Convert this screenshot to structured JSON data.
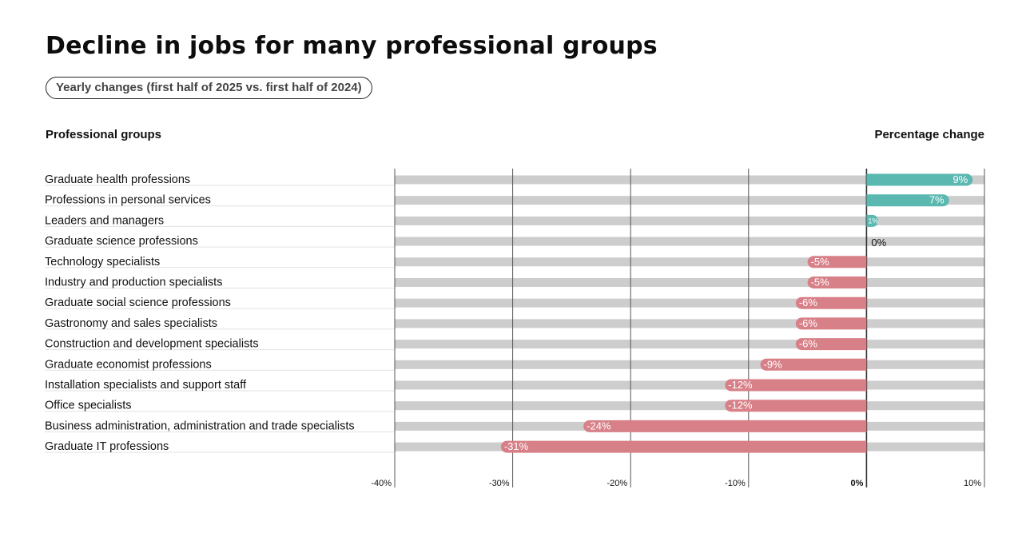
{
  "header": {
    "title": "Decline in jobs for many professional groups",
    "subtitle": "Yearly changes (first half of 2025 vs. first half of 2024)",
    "left_column_label": "Professional groups",
    "right_column_label": "Percentage change"
  },
  "colors": {
    "positive": "#5bb8b0",
    "negative": "#d88088",
    "track": "#cdcdcd",
    "gridline": "#555555"
  },
  "chart_data": {
    "type": "bar",
    "orientation": "horizontal",
    "title": "Decline in jobs for many professional groups",
    "subtitle": "Yearly changes (first half of 2025 vs. first half of 2024)",
    "xlabel": "Percentage change",
    "ylabel": "Professional groups",
    "xlim": [
      -40,
      10
    ],
    "xticks": [
      -40,
      -30,
      -20,
      -10,
      0,
      10
    ],
    "xtick_labels": [
      "-40%",
      "-30%",
      "-20%",
      "-10%",
      "0%",
      "10%"
    ],
    "grid": true,
    "categories": [
      "Graduate health professions",
      "Professions in personal services",
      "Leaders and managers",
      "Graduate science professions",
      "Technology specialists",
      "Industry and production specialists",
      "Graduate social science professions",
      "Gastronomy and sales specialists",
      "Construction and development specialists",
      "Graduate economist professions",
      "Installation specialists and support staff",
      "Office specialists",
      "Business administration, administration and trade specialists",
      "Graduate IT professions"
    ],
    "values": [
      9,
      7,
      1,
      0,
      -5,
      -5,
      -6,
      -6,
      -6,
      -9,
      -12,
      -12,
      -24,
      -31
    ],
    "value_labels": [
      "9%",
      "7%",
      "1%",
      "0%",
      "-5%",
      "-5%",
      "-6%",
      "-6%",
      "-6%",
      "-9%",
      "-12%",
      "-12%",
      "-24%",
      "-31%"
    ]
  }
}
